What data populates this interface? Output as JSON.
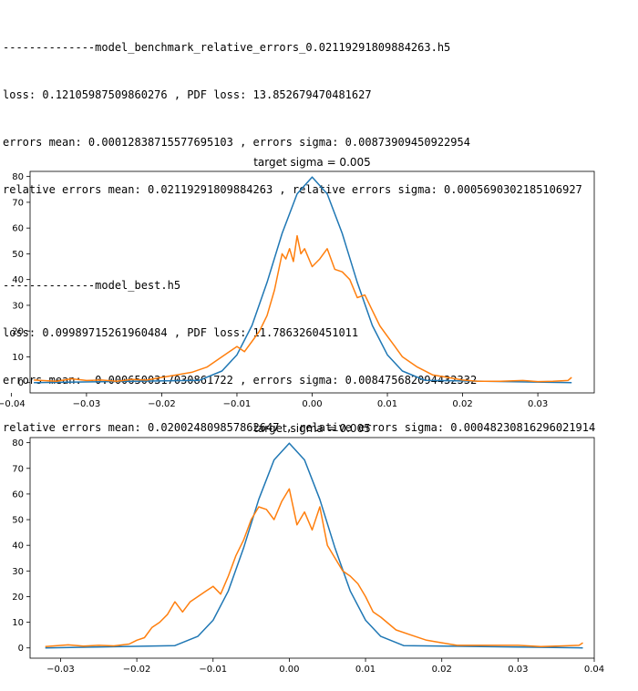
{
  "log": {
    "blocks": [
      {
        "header": "--------------model_benchmark_relative_errors_0.02119291809884263.h5",
        "loss_line": "loss: 0.12105987509860276 , PDF loss: 13.852679470481627",
        "errors_line": "errors mean: 0.00012838715577695103 , errors sigma: 0.00873909450922954",
        "rel_line": "relative errors mean: 0.02119291809884263 , relative errors sigma: 0.0005690302185106927"
      },
      {
        "header": "--------------model_best.h5",
        "loss_line": "loss: 0.09989715261960484 , PDF loss: 11.7863260451011",
        "errors_line": "errors mean: -0.0006500317030861722 , errors sigma: 0.008475682094432332",
        "rel_line": "relative errors mean: 0.020024809857862647 , relative errors sigma: 0.00048230816296021914"
      }
    ]
  },
  "colors": {
    "gaussian": "#1f77b4",
    "histogram": "#ff7f0e"
  },
  "chart_data": [
    {
      "type": "line",
      "title": "target sigma = 0.005",
      "xlim": [
        -0.0375,
        0.0375
      ],
      "ylim": [
        -4,
        82
      ],
      "xticks": [
        -0.04,
        -0.03,
        -0.02,
        -0.01,
        0.0,
        0.01,
        0.02,
        0.03
      ],
      "xtick_labels": [
        "−0.04",
        "−0.03",
        "−0.02",
        "−0.01",
        "0.00",
        "0.01",
        "0.02",
        "0.03"
      ],
      "yticks": [
        0,
        10,
        20,
        30,
        40,
        50,
        60,
        70,
        80
      ],
      "ytick_labels": [
        "0",
        "10",
        "20",
        "30",
        "40",
        "50",
        "60",
        "70",
        "80"
      ],
      "series": [
        {
          "kind": "gaussian",
          "x": [
            -0.037,
            -0.015,
            -0.012,
            -0.01,
            -0.008,
            -0.006,
            -0.004,
            -0.002,
            0.0,
            0.002,
            0.004,
            0.006,
            0.008,
            0.01,
            0.012,
            0.015,
            0.0345
          ],
          "y": [
            0,
            0.9,
            4.5,
            10.8,
            22.2,
            38.9,
            57.9,
            73.3,
            79.8,
            73.3,
            57.9,
            38.9,
            22.2,
            10.8,
            4.5,
            0.9,
            0
          ]
        },
        {
          "kind": "histogram",
          "x": [
            -0.037,
            -0.034,
            -0.032,
            -0.03,
            -0.028,
            -0.026,
            -0.024,
            -0.022,
            -0.02,
            -0.018,
            -0.016,
            -0.014,
            -0.012,
            -0.011,
            -0.01,
            -0.009,
            -0.008,
            -0.007,
            -0.006,
            -0.005,
            -0.004,
            -0.0035,
            -0.003,
            -0.0025,
            -0.002,
            -0.0015,
            -0.001,
            0.0,
            0.001,
            0.002,
            0.003,
            0.004,
            0.005,
            0.006,
            0.007,
            0.008,
            0.009,
            0.01,
            0.011,
            0.012,
            0.013,
            0.014,
            0.016,
            0.018,
            0.02,
            0.022,
            0.025,
            0.028,
            0.03,
            0.032,
            0.034,
            0.0345
          ],
          "y": [
            1,
            0.5,
            1.5,
            0.8,
            1,
            0.5,
            1.2,
            1,
            2,
            3,
            4,
            6,
            10,
            12,
            14,
            12,
            16,
            20,
            26,
            36,
            50,
            48,
            52,
            47,
            57,
            50,
            52,
            45,
            48,
            52,
            44,
            43,
            40,
            33,
            34,
            28,
            22,
            18,
            14,
            10,
            8,
            6,
            3,
            2,
            1,
            0.5,
            0.5,
            0.8,
            0.4,
            0.5,
            0.8,
            2
          ]
        }
      ]
    },
    {
      "type": "line",
      "title": "target sigma = 0.005",
      "xlim": [
        -0.034,
        0.04
      ],
      "ylim": [
        -4,
        82
      ],
      "xticks": [
        -0.03,
        -0.02,
        -0.01,
        0.0,
        0.01,
        0.02,
        0.03,
        0.04
      ],
      "xtick_labels": [
        "−0.03",
        "−0.02",
        "−0.01",
        "0.00",
        "0.01",
        "0.02",
        "0.03",
        "0.04"
      ],
      "yticks": [
        0,
        10,
        20,
        30,
        40,
        50,
        60,
        70,
        80
      ],
      "ytick_labels": [
        "0",
        "10",
        "20",
        "30",
        "40",
        "50",
        "60",
        "70",
        "80"
      ],
      "series": [
        {
          "kind": "gaussian",
          "x": [
            -0.032,
            -0.015,
            -0.012,
            -0.01,
            -0.008,
            -0.006,
            -0.004,
            -0.002,
            0.0,
            0.002,
            0.004,
            0.006,
            0.008,
            0.01,
            0.012,
            0.015,
            0.0385
          ],
          "y": [
            0,
            0.9,
            4.5,
            10.8,
            22.2,
            38.9,
            57.9,
            73.3,
            79.8,
            73.3,
            57.9,
            38.9,
            22.2,
            10.8,
            4.5,
            0.9,
            0
          ]
        },
        {
          "kind": "histogram",
          "x": [
            -0.032,
            -0.029,
            -0.027,
            -0.025,
            -0.023,
            -0.021,
            -0.02,
            -0.019,
            -0.018,
            -0.017,
            -0.016,
            -0.015,
            -0.014,
            -0.013,
            -0.012,
            -0.011,
            -0.01,
            -0.009,
            -0.008,
            -0.007,
            -0.006,
            -0.005,
            -0.004,
            -0.003,
            -0.002,
            -0.001,
            0.0,
            0.001,
            0.002,
            0.003,
            0.004,
            0.005,
            0.006,
            0.007,
            0.008,
            0.009,
            0.01,
            0.011,
            0.012,
            0.014,
            0.016,
            0.018,
            0.02,
            0.022,
            0.025,
            0.028,
            0.03,
            0.033,
            0.036,
            0.038,
            0.0385
          ],
          "y": [
            0.5,
            1.2,
            0.7,
            1,
            0.8,
            1.5,
            3,
            4,
            8,
            10,
            13,
            18,
            14,
            18,
            20,
            22,
            24,
            21,
            28,
            36,
            42,
            50,
            55,
            54,
            50,
            57,
            62,
            48,
            53,
            46,
            55,
            40,
            35,
            30,
            28,
            25,
            20,
            14,
            12,
            7,
            5,
            3,
            2,
            1,
            1,
            1,
            1,
            0.5,
            0.8,
            1,
            2
          ]
        }
      ]
    }
  ]
}
